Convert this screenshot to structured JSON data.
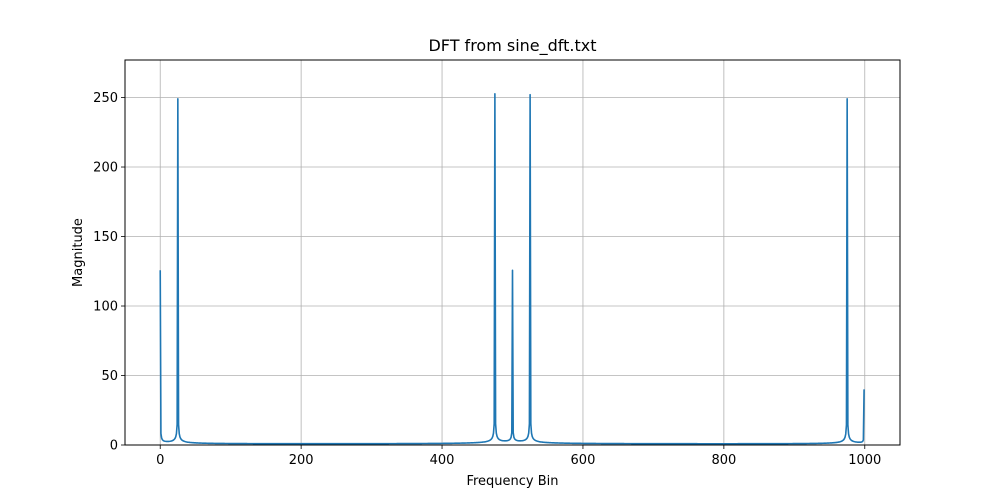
{
  "chart_data": {
    "type": "line",
    "title": "DFT from sine_dft.txt",
    "xlabel": "Frequency Bin",
    "ylabel": "Magnitude",
    "xlim": [
      -50,
      1050
    ],
    "ylim": [
      0,
      277
    ],
    "xticks": [
      0,
      200,
      400,
      600,
      800,
      1000
    ],
    "yticks": [
      0,
      50,
      100,
      150,
      200,
      250
    ],
    "grid": true,
    "legend": "none",
    "color": "#1f77b4",
    "n_bins": 1000,
    "peaks": [
      {
        "bin": 0,
        "value": 125
      },
      {
        "bin": 25,
        "value": 249
      },
      {
        "bin": 475,
        "value": 252
      },
      {
        "bin": 500,
        "value": 125
      },
      {
        "bin": 525,
        "value": 252
      },
      {
        "bin": 975,
        "value": 249
      },
      {
        "bin": 999,
        "value": 40
      }
    ],
    "series": [
      {
        "values_description_bins": [
          0,
          999
        ]
      }
    ]
  }
}
